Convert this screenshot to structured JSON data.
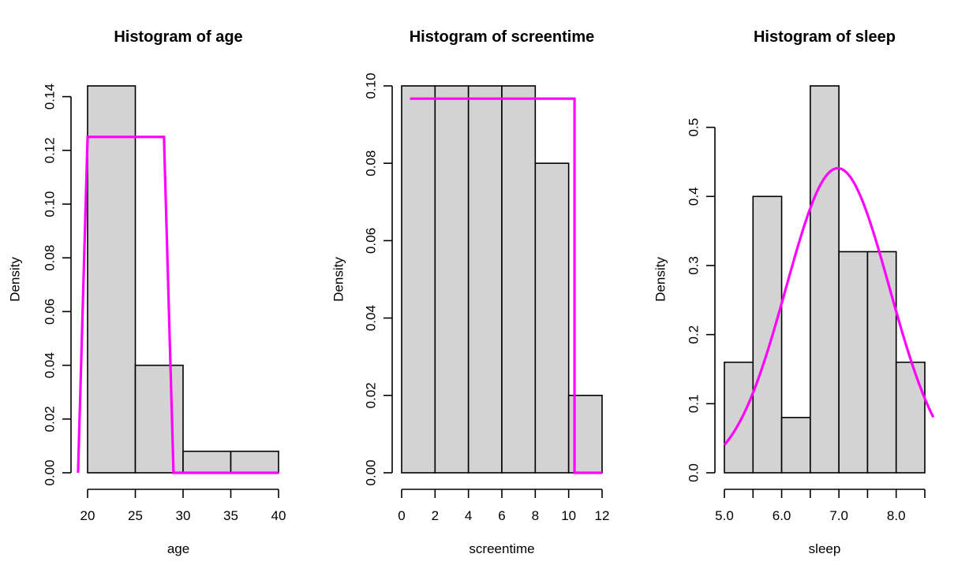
{
  "colors": {
    "bar_fill": "#d3d3d3",
    "bar_stroke": "#000000",
    "curve": "#ff00ff",
    "axis": "#000000"
  },
  "chart_data": [
    {
      "type": "bar",
      "title": "Histogram of age",
      "xlabel": "age",
      "ylabel": "Density",
      "bin_edges": [
        20,
        25,
        30,
        35,
        40
      ],
      "values": [
        0.144,
        0.04,
        0.008,
        0.008
      ],
      "xlim": [
        20,
        40
      ],
      "ylim": [
        0,
        0.144
      ],
      "xticks": [
        20,
        25,
        30,
        35,
        40
      ],
      "xtick_labels": [
        "20",
        "25",
        "30",
        "35",
        "40"
      ],
      "yticks": [
        0,
        0.02,
        0.04,
        0.06,
        0.08,
        0.1,
        0.12,
        0.14
      ],
      "ytick_labels": [
        "0.00",
        "0.02",
        "0.04",
        "0.06",
        "0.08",
        "0.10",
        "0.12",
        "0.14"
      ],
      "overlay": {
        "type": "line",
        "x": [
          19,
          20,
          28,
          29,
          40
        ],
        "y": [
          0,
          0.125,
          0.125,
          0,
          0
        ]
      }
    },
    {
      "type": "bar",
      "title": "Histogram of screentime",
      "xlabel": "screentime",
      "ylabel": "Density",
      "bin_edges": [
        0,
        2,
        4,
        6,
        8,
        10,
        12
      ],
      "values": [
        0.1,
        0.1,
        0.1,
        0.1,
        0.08,
        0.02
      ],
      "xlim": [
        0,
        12
      ],
      "ylim": [
        0,
        0.1
      ],
      "xticks": [
        0,
        2,
        4,
        6,
        8,
        10,
        12
      ],
      "xtick_labels": [
        "0",
        "2",
        "4",
        "6",
        "8",
        "10",
        "12"
      ],
      "yticks": [
        0,
        0.02,
        0.04,
        0.06,
        0.08,
        0.1
      ],
      "ytick_labels": [
        "0.00",
        "0.02",
        "0.04",
        "0.06",
        "0.08",
        "0.10"
      ],
      "overlay": {
        "type": "line",
        "x": [
          0.5,
          10.35,
          10.35,
          12
        ],
        "y": [
          0.0967,
          0.0967,
          0,
          0
        ]
      }
    },
    {
      "type": "bar",
      "title": "Histogram of sleep",
      "xlabel": "sleep",
      "ylabel": "Density",
      "bin_edges": [
        5,
        5.5,
        6,
        6.5,
        7,
        7.5,
        8,
        8.5
      ],
      "values": [
        0.16,
        0.4,
        0.08,
        0.56,
        0.32,
        0.32,
        0.16
      ],
      "xlim": [
        5,
        8.5
      ],
      "ylim": [
        0,
        0.56
      ],
      "xticks": [
        5,
        5.5,
        6,
        6.5,
        7,
        7.5,
        8,
        8.5
      ],
      "xtick_labels": [
        "5.0",
        "",
        "6.0",
        "",
        "7.0",
        "",
        "8.0",
        ""
      ],
      "yticks": [
        0,
        0.1,
        0.2,
        0.3,
        0.4,
        0.5
      ],
      "ytick_labels": [
        "0.0",
        "0.1",
        "0.2",
        "0.3",
        "0.4",
        "0.5"
      ],
      "overlay": {
        "type": "normal_density",
        "mean": 6.98,
        "sd": 0.905,
        "x_start": 5,
        "x_end": 8.65
      }
    }
  ]
}
